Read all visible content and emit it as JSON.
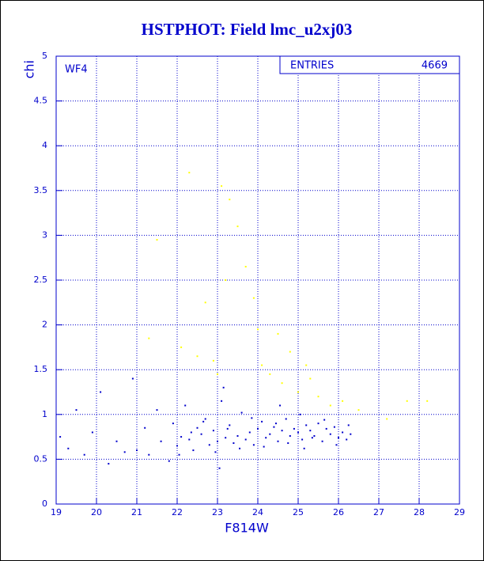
{
  "chart_data": {
    "type": "scatter",
    "title": "HSTPHOT: Field lmc_u2xj03",
    "x_label": "F814W",
    "y_label": "chi",
    "annotation": "WF4",
    "stats": {
      "label": "ENTRIES",
      "value": 4669
    },
    "xlim": [
      19,
      29
    ],
    "ylim": [
      0,
      5
    ],
    "xticks": [
      19,
      20,
      21,
      22,
      23,
      24,
      25,
      26,
      27,
      28,
      29
    ],
    "yticks": [
      0,
      0.5,
      1,
      1.5,
      2,
      2.5,
      3,
      3.5,
      4,
      4.5,
      5
    ],
    "grid": true,
    "series": [
      {
        "color": "#ffff00",
        "x": [
          21.3,
          21.5,
          22.1,
          22.3,
          22.7,
          22.9,
          23.1,
          23.2,
          23.3,
          23.5,
          23.7,
          23.9,
          24.1,
          24.3,
          24.5,
          24.6,
          24.8,
          25.0,
          25.2,
          25.3,
          25.5,
          25.8,
          26.1,
          26.5,
          27.2,
          27.7,
          28.2,
          23.0,
          22.5,
          24.0
        ],
        "values": [
          1.85,
          2.95,
          1.75,
          3.7,
          2.25,
          1.6,
          3.55,
          2.5,
          3.4,
          3.1,
          2.65,
          2.3,
          1.55,
          1.45,
          1.9,
          1.35,
          1.7,
          1.25,
          1.55,
          1.4,
          1.2,
          1.1,
          1.15,
          1.05,
          0.95,
          1.15,
          1.15,
          1.45,
          1.65,
          1.95
        ]
      },
      {
        "color": "#0000cc",
        "x": [
          19.1,
          19.3,
          19.5,
          19.7,
          19.9,
          20.1,
          20.3,
          20.5,
          20.7,
          20.9,
          21.0,
          21.2,
          21.3,
          21.5,
          21.6,
          21.8,
          21.9,
          22.0,
          22.1,
          22.2,
          22.3,
          22.4,
          22.5,
          22.6,
          22.7,
          22.8,
          22.9,
          23.0,
          23.1,
          23.2,
          23.3,
          23.4,
          23.5,
          23.6,
          23.7,
          23.8,
          23.9,
          24.0,
          24.1,
          24.2,
          24.3,
          24.4,
          24.5,
          24.6,
          24.7,
          24.8,
          24.9,
          25.0,
          25.1,
          25.2,
          25.3,
          25.4,
          25.5,
          25.6,
          25.7,
          25.8,
          25.9,
          26.0,
          26.1,
          26.2,
          26.3,
          26.25,
          25.95,
          25.65,
          25.35,
          25.05,
          24.75,
          24.45,
          24.15,
          23.85,
          23.55,
          23.25,
          22.95,
          22.65,
          22.35,
          22.05,
          23.15,
          24.55,
          25.15,
          23.05
        ],
        "values": [
          0.75,
          0.62,
          1.05,
          0.55,
          0.8,
          1.25,
          0.45,
          0.7,
          0.58,
          1.4,
          0.6,
          0.85,
          0.55,
          1.05,
          0.7,
          0.48,
          0.9,
          0.65,
          0.75,
          1.1,
          0.72,
          0.6,
          0.85,
          0.78,
          0.95,
          0.66,
          0.82,
          0.7,
          1.15,
          0.74,
          0.88,
          0.68,
          0.76,
          1.02,
          0.72,
          0.8,
          0.66,
          0.84,
          0.92,
          0.74,
          0.78,
          0.86,
          0.7,
          0.82,
          0.95,
          0.76,
          0.84,
          0.8,
          0.72,
          0.88,
          0.82,
          0.76,
          0.9,
          0.7,
          0.84,
          0.78,
          0.86,
          0.74,
          0.8,
          0.72,
          0.78,
          0.88,
          0.66,
          0.94,
          0.74,
          1.0,
          0.68,
          0.9,
          0.64,
          0.96,
          0.62,
          0.84,
          0.58,
          0.92,
          0.8,
          0.55,
          1.3,
          1.1,
          0.62,
          0.4
        ]
      }
    ]
  }
}
